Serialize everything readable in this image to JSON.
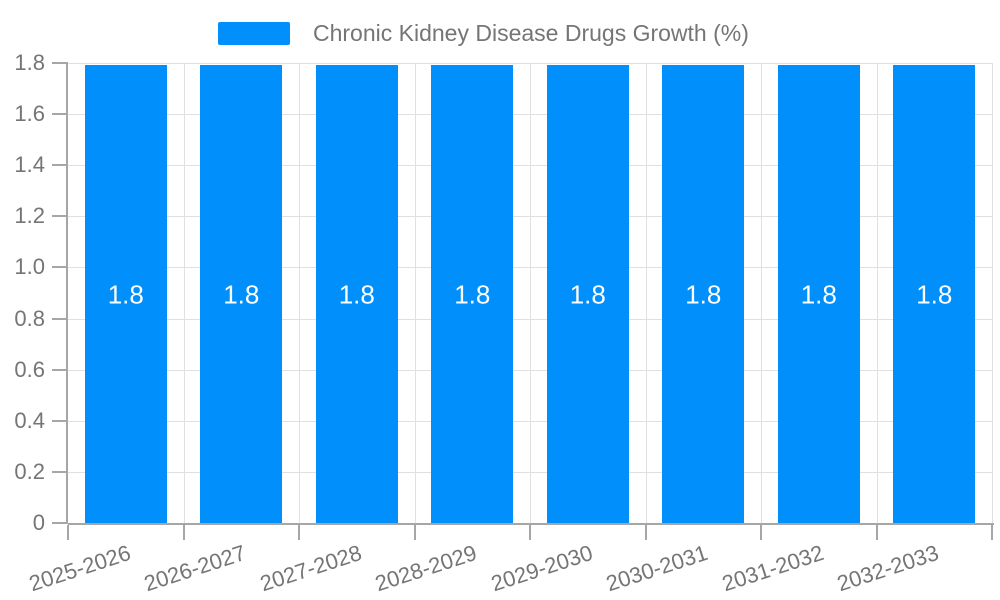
{
  "legend": {
    "label": "Chronic Kidney Disease Drugs Growth (%)"
  },
  "chart_data": {
    "type": "bar",
    "title": "Chronic Kidney Disease Drugs Growth (%)",
    "categories": [
      "2025-2026",
      "2026-2027",
      "2027-2028",
      "2028-2029",
      "2029-2030",
      "2030-2031",
      "2031-2032",
      "2032-2033"
    ],
    "series": [
      {
        "name": "Chronic Kidney Disease Drugs Growth (%)",
        "values": [
          1.8,
          1.8,
          1.8,
          1.8,
          1.8,
          1.8,
          1.8,
          1.8
        ]
      }
    ],
    "data_labels": [
      "1.8",
      "1.8",
      "1.8",
      "1.8",
      "1.8",
      "1.8",
      "1.8",
      "1.8"
    ],
    "xlabel": "",
    "ylabel": "",
    "ylim": [
      0,
      1.8
    ],
    "yticks": [
      {
        "value": 0,
        "label": "0"
      },
      {
        "value": 0.2,
        "label": "0.2"
      },
      {
        "value": 0.4,
        "label": "0.4"
      },
      {
        "value": 0.6,
        "label": "0.6"
      },
      {
        "value": 0.8,
        "label": "0.8"
      },
      {
        "value": 1.0,
        "label": "1.0"
      },
      {
        "value": 1.2,
        "label": "1.2"
      },
      {
        "value": 1.4,
        "label": "1.4"
      },
      {
        "value": 1.6,
        "label": "1.6"
      },
      {
        "value": 1.8,
        "label": "1.8"
      }
    ],
    "grid": true,
    "legend_position": "top-center",
    "x_label_rotation_deg": -18,
    "colors": {
      "bar": "#008FFB",
      "data_label": "#FFFFFF",
      "grid": "#E0E0E0",
      "axis": "#A6A6A6",
      "text": "#757575",
      "background": "#FFFFFF"
    }
  }
}
